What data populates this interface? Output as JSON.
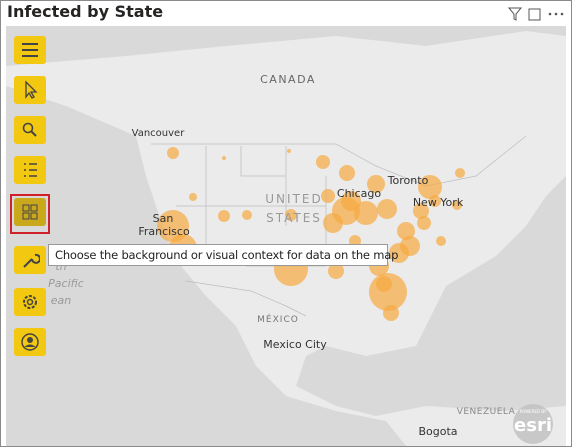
{
  "header": {
    "title": "Infected by State"
  },
  "toolbar": {
    "tooltip": "Choose the background or visual context for data on the map"
  },
  "map": {
    "labels": [
      "CANADA",
      "Vancouver",
      "UNITED",
      "STATES",
      "Chicago",
      "Toronto",
      "New York",
      "San",
      "Francisco",
      "th",
      "Pacific",
      "ean",
      "MÉXICO",
      "Mexico City",
      "VENEZUELA",
      "Bogota"
    ]
  },
  "attribution": {
    "powered_by": "POWERED BY",
    "brand": "esri"
  }
}
